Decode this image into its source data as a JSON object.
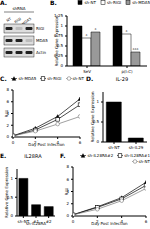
{
  "blot": {
    "panel": "A.",
    "header": "shRNA",
    "lanes": [
      "NT",
      "RIGI",
      "MDA5"
    ],
    "rows": [
      "RIGI",
      "MDA5",
      "Actin"
    ]
  },
  "chart_data": [
    {
      "panel": "B.",
      "type": "bar",
      "y_label": "Relative Gene Expression",
      "categories": [
        "SeV",
        "p(I:C)"
      ],
      "series": [
        {
          "name": "sh-NT",
          "color": "#000000",
          "values": [
            1.0,
            1.0
          ]
        },
        {
          "name": "sh-RIGI",
          "color": "#ffffff",
          "values": [
            0.7,
            0.8
          ],
          "significance": [
            "*",
            "*"
          ]
        },
        {
          "name": "sh-MDA5",
          "color": "#999999",
          "values": [
            0.85,
            0.35
          ],
          "significance": [
            "*",
            "***"
          ]
        }
      ],
      "ylim": [
        0,
        1.25
      ],
      "yticks": [
        0,
        0.25,
        0.5,
        0.75,
        1,
        1.25
      ]
    },
    {
      "panel": "C.",
      "type": "line",
      "y_label": "RLU",
      "x_label": "Day Post Infection",
      "x": [
        0,
        2,
        4,
        6
      ],
      "series": [
        {
          "name": "sh-MDA5",
          "color": "#000000",
          "marker": "triangle",
          "values": [
            0.2,
            1.5,
            3.5,
            6.5
          ]
        },
        {
          "name": "sh-RIGI",
          "color": "#000000",
          "marker": "square",
          "values": [
            0.2,
            1.2,
            3.0,
            5.5
          ]
        },
        {
          "name": "sh-NT",
          "color": "#777777",
          "marker": "circle",
          "values": [
            0.2,
            1.0,
            2.2,
            3.5
          ]
        }
      ],
      "xlim": [
        0,
        6
      ],
      "xticks": [
        0,
        2,
        4,
        6
      ],
      "ylim": [
        0,
        8
      ],
      "yticks": [
        0,
        2,
        4,
        6,
        8
      ]
    },
    {
      "panel": "D.",
      "type": "bar",
      "title": "IL-29",
      "y_label": "Relative Gene Expression",
      "categories": [
        "sh-NT",
        "sh-IL29"
      ],
      "values": [
        1.0,
        0.1
      ],
      "color": "#000000",
      "ylim": [
        0,
        1.25
      ],
      "yticks": [
        0,
        0.5,
        1
      ]
    },
    {
      "panel": "E.",
      "type": "bar",
      "title": "IL28RA",
      "y_label": "Relative Gene Expression",
      "x_label": "sh-IL28RA",
      "categories": [
        "sh-NT",
        "#1",
        "#2"
      ],
      "values": [
        1.0,
        0.3,
        0.25
      ],
      "color": "#000000",
      "ylim": [
        0,
        1.25
      ],
      "yticks": [
        0,
        0.5,
        1
      ]
    },
    {
      "panel": "F.",
      "type": "line",
      "y_label": "RLU",
      "x_label": "Day Post Infection",
      "x": [
        0,
        2,
        4,
        6
      ],
      "series": [
        {
          "name": "sh-IL28RA#2",
          "color": "#000000",
          "marker": "triangle",
          "values": [
            0.2,
            1.5,
            3.0,
            5.5
          ]
        },
        {
          "name": "sh-IL28RA#1",
          "color": "#000000",
          "marker": "square",
          "values": [
            0.2,
            1.4,
            2.8,
            5.0
          ]
        },
        {
          "name": "sh-NT",
          "color": "#777777",
          "marker": "circle",
          "values": [
            0.2,
            1.1,
            2.5,
            4.5
          ]
        }
      ],
      "xlim": [
        0,
        6
      ],
      "xticks": [
        0,
        2,
        4,
        6
      ],
      "ylim": [
        0,
        8
      ],
      "yticks": [
        0,
        2,
        4,
        6,
        8
      ]
    }
  ]
}
